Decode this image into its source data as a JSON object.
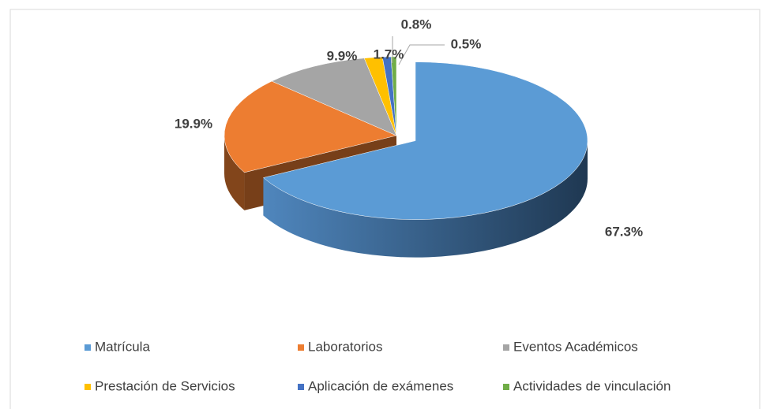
{
  "chart_data": {
    "type": "pie3d",
    "categories": [
      "Matrícula",
      "Laboratorios",
      "Eventos Académicos",
      "Prestación de Servicios",
      "Aplicación de exámenes",
      "Actividades de vinculación"
    ],
    "values": [
      67.3,
      19.9,
      9.9,
      1.7,
      0.8,
      0.5
    ],
    "value_labels": [
      "67.3%",
      "19.9%",
      "9.9%",
      "1.7%",
      "0.8%",
      "0.5%"
    ],
    "colors": [
      "#5b9bd5",
      "#ed7d31",
      "#a5a5a5",
      "#ffc000",
      "#4472c4",
      "#70ad47"
    ],
    "legend": "bottom"
  }
}
